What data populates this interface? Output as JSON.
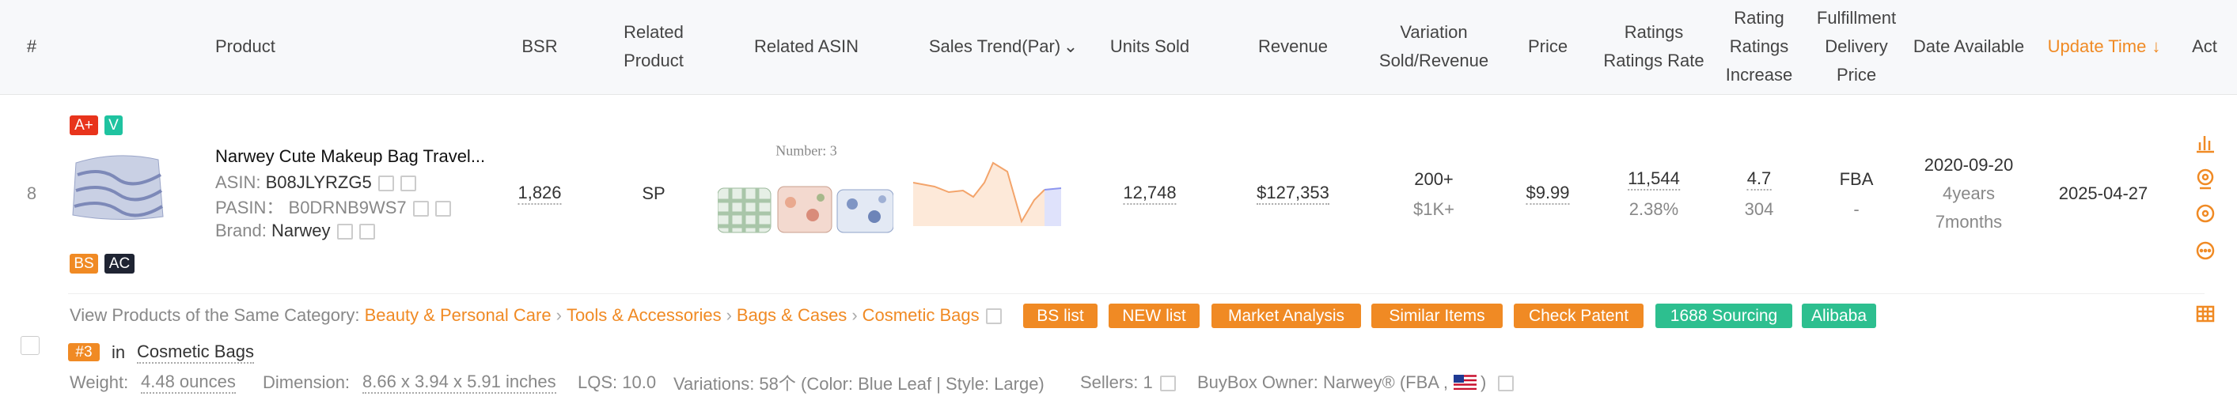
{
  "header": {
    "columns": [
      [
        "#"
      ],
      [
        "Product"
      ],
      [
        "BSR"
      ],
      [
        "Related",
        "Product"
      ],
      [
        "Related ASIN"
      ],
      [
        "Sales Trend(Par)"
      ],
      [
        "Units Sold"
      ],
      [
        "Revenue"
      ],
      [
        "Variation",
        "Sold/Revenue"
      ],
      [
        "Price"
      ],
      [
        "Ratings",
        "Ratings Rate"
      ],
      [
        "Rating",
        "Ratings",
        "Increase"
      ],
      [
        "Fulfillment",
        "Delivery",
        "Price"
      ],
      [
        "Date Available"
      ],
      [
        "Update Time"
      ],
      [
        "Act"
      ]
    ]
  },
  "row": {
    "index": "8",
    "badges_top": [
      "A+",
      "V"
    ],
    "badges_bottom": [
      "BS",
      "AC"
    ],
    "title": "Narwey Cute Makeup Bag Travel...",
    "asin_label": "ASIN:",
    "asin": "B08JLYRZG5",
    "pasin_label": "PASIN：",
    "pasin": "B0DRNB9WS7",
    "brand_label": "Brand:",
    "brand": "Narwey",
    "bsr": "1,826",
    "related_product": "SP",
    "related_count": "Number: 3",
    "units_sold": "12,748",
    "revenue": "$127,353",
    "variation_sold": "200+",
    "variation_revenue": "$1K+",
    "price": "$9.99",
    "ratings": "11,544",
    "ratings_rate": "2.38%",
    "rating": "4.7",
    "ratings_increase": "304",
    "fulfillment": "FBA",
    "delivery_price": "-",
    "date_available": "2020-09-20",
    "age_years": "4years",
    "age_months": "7months",
    "update_time": "2025-04-27"
  },
  "category_bar": {
    "label": "View Products of the Same Category:",
    "path": [
      "Beauty & Personal Care",
      "Tools & Accessories",
      "Bags & Cases",
      "Cosmetic Bags"
    ],
    "buttons": [
      "BS list",
      "NEW list",
      "Market Analysis",
      "Similar Items",
      "Check Patent",
      "1688 Sourcing",
      "Alibaba"
    ]
  },
  "rank": {
    "badge": "#3",
    "in": "in",
    "category": "Cosmetic Bags"
  },
  "details": {
    "weight_label": "Weight:",
    "weight": "4.48 ounces",
    "dimension_label": "Dimension:",
    "dimension": "8.66 x 3.94 x 5.91 inches",
    "lqs": "LQS: 10.0",
    "variations": "Variations: 58个 (Color: Blue Leaf | Style: Large)",
    "sellers": "Sellers: 1",
    "buybox": "BuyBox Owner: Narwey® (FBA ,",
    "buybox_end": ")"
  }
}
